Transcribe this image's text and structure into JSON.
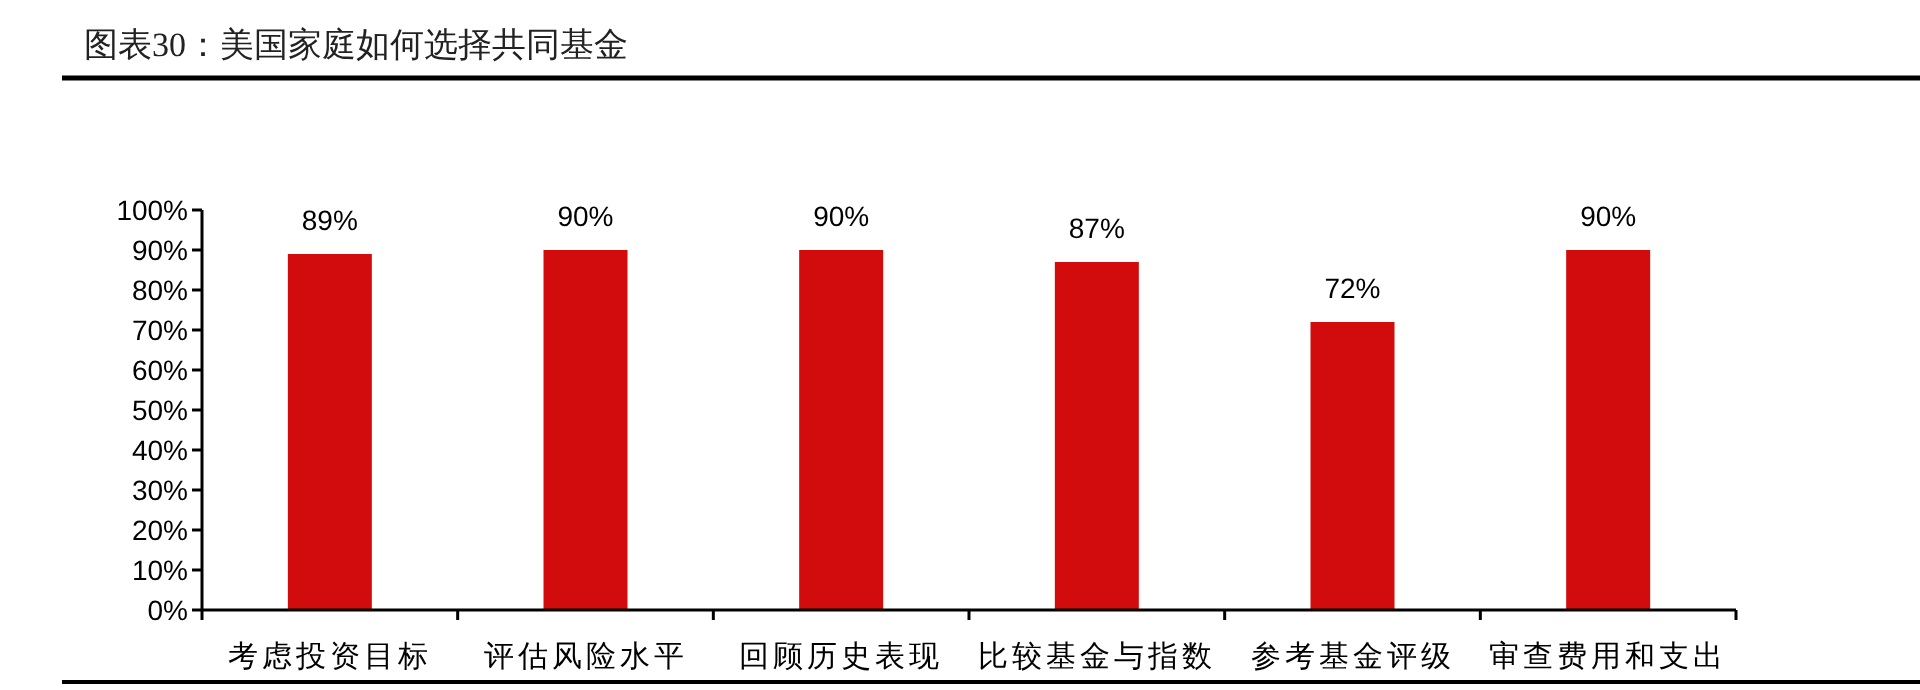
{
  "chart_data": {
    "type": "bar",
    "title": "图表30：美国家庭如何选择共同基金",
    "categories": [
      "考虑投资目标",
      "评估风险水平",
      "回顾历史表现",
      "比较基金与指数",
      "参考基金评级",
      "审查费用和支出"
    ],
    "values": [
      89,
      90,
      90,
      87,
      72,
      90
    ],
    "value_labels": [
      "89%",
      "90%",
      "90%",
      "87%",
      "72%",
      "90%"
    ],
    "color": "#d20c0c",
    "ylim": [
      0,
      100
    ],
    "yticks": [
      {
        "value": 0,
        "label": "0%"
      },
      {
        "value": 10,
        "label": "10%"
      },
      {
        "value": 20,
        "label": "20%"
      },
      {
        "value": 30,
        "label": "30%"
      },
      {
        "value": 40,
        "label": "40%"
      },
      {
        "value": 50,
        "label": "50%"
      },
      {
        "value": 60,
        "label": "60%"
      },
      {
        "value": 70,
        "label": "70%"
      },
      {
        "value": 80,
        "label": "80%"
      },
      {
        "value": 90,
        "label": "90%"
      },
      {
        "value": 100,
        "label": "100%"
      }
    ],
    "grid": false
  }
}
